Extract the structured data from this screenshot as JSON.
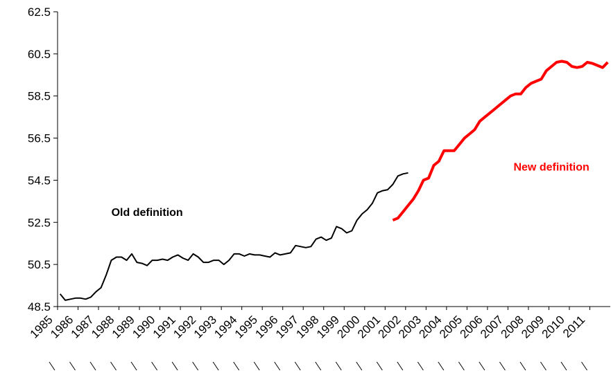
{
  "chart_data": {
    "type": "line",
    "categories": [
      "1985",
      null,
      null,
      null,
      "1986",
      null,
      null,
      null,
      "1987",
      null,
      null,
      null,
      "1988",
      null,
      null,
      null,
      "1989",
      null,
      null,
      null,
      "1990",
      null,
      null,
      null,
      "1991",
      null,
      null,
      null,
      "1992",
      null,
      null,
      null,
      "1993",
      null,
      null,
      null,
      "1994",
      null,
      null,
      null,
      "1995",
      null,
      null,
      null,
      "1996",
      null,
      null,
      null,
      "1997",
      null,
      null,
      null,
      "1998",
      null,
      null,
      null,
      "1999",
      null,
      null,
      null,
      "2000",
      null,
      null,
      null,
      "2001",
      null,
      null,
      null,
      "2002",
      null,
      null,
      null,
      "2003",
      null,
      null,
      null,
      "2004",
      null,
      null,
      null,
      "2005",
      null,
      null,
      null,
      "2006",
      null,
      null,
      null,
      "2007",
      null,
      null,
      null,
      "2008",
      null,
      null,
      null,
      "2009",
      null,
      null,
      null,
      "2010",
      null,
      null,
      null,
      "2011",
      null,
      null,
      null
    ],
    "series": [
      {
        "name": "Old definition",
        "color": "#000000",
        "width": 2,
        "values": [
          49.1,
          48.8,
          48.85,
          48.9,
          48.9,
          48.85,
          48.95,
          49.2,
          49.4,
          50.0,
          50.7,
          50.85,
          50.85,
          50.7,
          51.0,
          50.6,
          50.55,
          50.45,
          50.7,
          50.7,
          50.75,
          50.7,
          50.85,
          50.95,
          50.8,
          50.7,
          51.0,
          50.85,
          50.6,
          50.6,
          50.7,
          50.7,
          50.5,
          50.7,
          51.0,
          51.0,
          50.9,
          51.0,
          50.95,
          50.95,
          50.9,
          50.85,
          51.05,
          50.95,
          51.0,
          51.05,
          51.4,
          51.35,
          51.3,
          51.35,
          51.7,
          51.8,
          51.65,
          51.75,
          52.3,
          52.2,
          52.0,
          52.1,
          52.6,
          52.9,
          53.1,
          53.4,
          53.9,
          54.0,
          54.05,
          54.3,
          54.7,
          54.8,
          54.85,
          null,
          null,
          null,
          null,
          null,
          null,
          null,
          null,
          null,
          null,
          null,
          null,
          null,
          null,
          null,
          null,
          null,
          null,
          null,
          null,
          null,
          null,
          null,
          null,
          null,
          null,
          null,
          null,
          null,
          null,
          null,
          null,
          null,
          null,
          null,
          null,
          null,
          null,
          null
        ]
      },
      {
        "name": "New definition",
        "color": "#ff0000",
        "width": 4,
        "values": [
          null,
          null,
          null,
          null,
          null,
          null,
          null,
          null,
          null,
          null,
          null,
          null,
          null,
          null,
          null,
          null,
          null,
          null,
          null,
          null,
          null,
          null,
          null,
          null,
          null,
          null,
          null,
          null,
          null,
          null,
          null,
          null,
          null,
          null,
          null,
          null,
          null,
          null,
          null,
          null,
          null,
          null,
          null,
          null,
          null,
          null,
          null,
          null,
          null,
          null,
          null,
          null,
          null,
          null,
          null,
          null,
          null,
          null,
          null,
          null,
          null,
          null,
          null,
          null,
          null,
          52.6,
          52.7,
          53.0,
          53.3,
          53.6,
          54.0,
          54.5,
          54.6,
          55.2,
          55.4,
          55.9,
          55.9,
          55.9,
          56.2,
          56.5,
          56.7,
          56.9,
          57.3,
          57.5,
          57.7,
          57.9,
          58.1,
          58.3,
          58.5,
          58.6,
          58.6,
          58.9,
          59.1,
          59.2,
          59.3,
          59.7,
          59.9,
          60.1,
          60.15,
          60.1,
          59.9,
          59.85,
          59.9,
          60.1,
          60.05,
          59.95,
          59.85,
          60.1
        ]
      }
    ],
    "annotations": [
      {
        "text": "Old definition",
        "color": "#000000",
        "x": 17,
        "y": 52.8
      },
      {
        "text": "New definition",
        "color": "#ff0000",
        "x": 96,
        "y": 54.95
      }
    ],
    "ylim": [
      48.5,
      62.5
    ],
    "yticks": [
      48.5,
      50.5,
      52.5,
      54.5,
      56.5,
      58.5,
      60.5,
      62.5
    ]
  }
}
